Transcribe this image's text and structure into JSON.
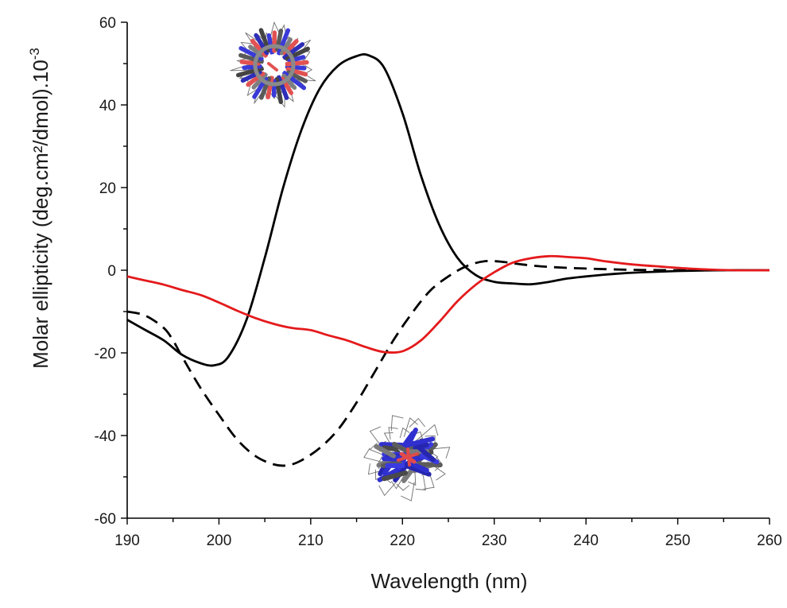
{
  "chart_data": {
    "type": "line",
    "title": "",
    "xlabel": "Wavelength (nm)",
    "ylabel": "Molar ellipticity (deg.cm²/dmol).10",
    "ylabel_exponent": "-3",
    "xlim": [
      190,
      260
    ],
    "ylim": [
      -60,
      60
    ],
    "xticks": [
      "190",
      "200",
      "210",
      "220",
      "230",
      "240",
      "250",
      "260"
    ],
    "yticks": [
      "-60",
      "-40",
      "-20",
      "0",
      "20",
      "40",
      "60"
    ],
    "grid": false,
    "legend": "none",
    "series": [
      {
        "color": "#000000",
        "style": "solid",
        "x": [
          190,
          192,
          194,
          196,
          198,
          199.5,
          201,
          203,
          205,
          207,
          209,
          211,
          213,
          215,
          216.3,
          218,
          220,
          222,
          224,
          226,
          228,
          230,
          232,
          234,
          236,
          238,
          240,
          243,
          246,
          250,
          255,
          260
        ],
        "y": [
          -12,
          -14.5,
          -17,
          -20.5,
          -22.5,
          -23,
          -21,
          -12,
          3,
          20,
          34,
          44,
          49.5,
          51.8,
          52,
          49,
          38,
          23,
          11,
          3,
          -1.2,
          -2.8,
          -3.2,
          -3.4,
          -2.8,
          -2,
          -1.5,
          -0.9,
          -0.5,
          -0.2,
          0,
          0
        ]
      },
      {
        "color": "#000000",
        "style": "dashed",
        "x": [
          190,
          192,
          194,
          195,
          196,
          198,
          200,
          202,
          204,
          206,
          207.5,
          209,
          211,
          213,
          215,
          217,
          219,
          221,
          223,
          225,
          227,
          229,
          231,
          233,
          236,
          240,
          245,
          250,
          255,
          260
        ],
        "y": [
          -10,
          -11,
          -14,
          -17,
          -21,
          -28.5,
          -35,
          -41,
          -45,
          -47,
          -47.2,
          -46,
          -43,
          -38.5,
          -32,
          -24.5,
          -17,
          -10.5,
          -5,
          -1.5,
          1,
          2.2,
          2,
          1.4,
          0.8,
          0.4,
          0.1,
          0,
          0,
          0
        ]
      },
      {
        "color": "#e41a1c",
        "style": "solid",
        "x": [
          190,
          192,
          194,
          196,
          198,
          200,
          202,
          204,
          206,
          208,
          210,
          212,
          214,
          216,
          218,
          220,
          222,
          224,
          226,
          228,
          230,
          232,
          234,
          236,
          238,
          240,
          242,
          245,
          248,
          252,
          256,
          260
        ],
        "y": [
          -1.5,
          -2.5,
          -3.5,
          -4.8,
          -6,
          -7.8,
          -9.8,
          -11.6,
          -13,
          -14,
          -14.5,
          -15.8,
          -17,
          -18.6,
          -19.8,
          -19.6,
          -17,
          -12.5,
          -7.5,
          -3.5,
          -0.5,
          1.8,
          2.9,
          3.4,
          3.2,
          2.9,
          2.2,
          1.4,
          0.9,
          0.3,
          0,
          0
        ]
      }
    ]
  }
}
